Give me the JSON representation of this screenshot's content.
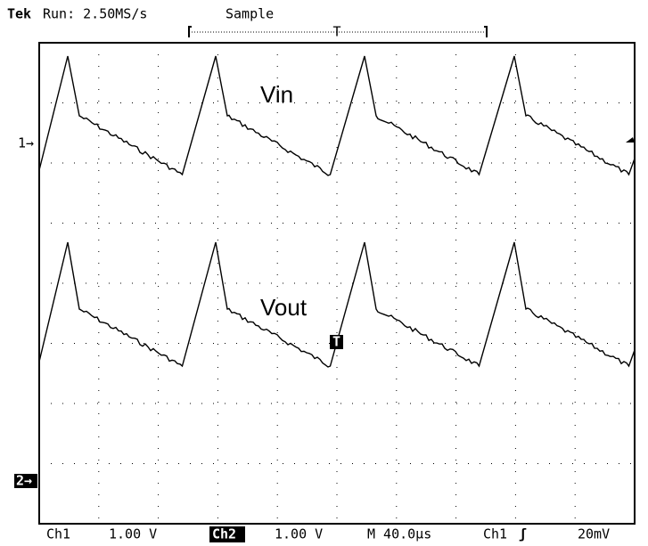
{
  "header": {
    "brand": "Tek",
    "status": "Run: 2.50MS/s",
    "acquisition": "Sample",
    "trigger_position": "T"
  },
  "screen": {
    "trace_1_label": "Vin",
    "trace_2_label": "Vout",
    "trigger_level_marker": "T",
    "channel_1_marker": "1→",
    "channel_2_marker": "2→"
  },
  "footer": {
    "ch1_name": "Ch1",
    "ch1_scale": "1.00 V",
    "ch2_name": "Ch2",
    "ch2_scale": "1.00 V",
    "timebase": "M 40.0µs",
    "trigger_source": "Ch1",
    "trigger_slope": "ʃ",
    "trigger_level": "20mV"
  }
}
